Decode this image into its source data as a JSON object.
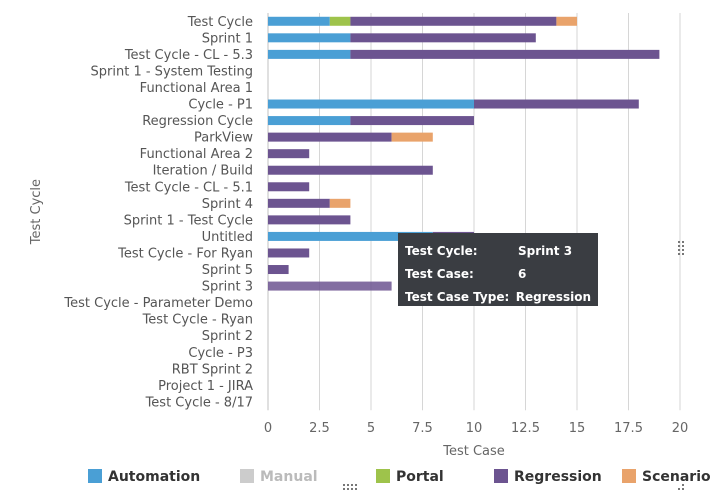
{
  "chart_data": {
    "type": "bar",
    "orientation": "horizontal",
    "stacked": true,
    "xlabel": "Test Case",
    "ylabel": "Test Cycle",
    "xlim": [
      0,
      20
    ],
    "x_ticks": [
      "0",
      "2.5",
      "5",
      "7.5",
      "10",
      "12.5",
      "15",
      "17.5",
      "20"
    ],
    "x_tick_values": [
      0,
      2.5,
      5,
      7.5,
      10,
      12.5,
      15,
      17.5,
      20
    ],
    "grid": true,
    "legend_position": "bottom",
    "categories": [
      "Test Cycle",
      "Sprint 1",
      "Test Cycle - CL - 5.3",
      "Sprint 1 - System Testing",
      "Functional Area 1",
      "Cycle - P1",
      "Regression Cycle",
      "ParkView",
      "Functional Area 2",
      "Iteration / Build",
      "Test Cycle - CL - 5.1",
      "Sprint 4",
      "Sprint 1 - Test Cycle",
      "Untitled",
      "Test Cycle - For Ryan",
      "Sprint 5",
      "Sprint 3",
      "Test Cycle - Parameter Demo",
      "Test Cycle - Ryan",
      "Sprint 2",
      "Cycle - P3",
      "RBT Sprint 2",
      "Project 1 - JIRA",
      "Test Cycle - 8/17"
    ],
    "series": [
      {
        "name": "Automation",
        "color": "#4a9fd5",
        "values": [
          3,
          4,
          4,
          0,
          0,
          10,
          4,
          0,
          0,
          0,
          0,
          0,
          0,
          8,
          0,
          0,
          0,
          0,
          0,
          0,
          0,
          0,
          0,
          0
        ]
      },
      {
        "name": "Manual",
        "color": "#d0d3d8",
        "values": [
          0,
          0,
          0,
          0,
          0,
          0,
          0,
          0,
          0,
          0,
          0,
          0,
          0,
          0,
          0,
          0,
          0,
          0,
          0,
          0,
          0,
          0,
          0,
          0
        ]
      },
      {
        "name": "Portal",
        "color": "#9ec34b",
        "values": [
          1,
          0,
          0,
          0,
          0,
          0,
          0,
          0,
          0,
          0,
          0,
          0,
          0,
          0,
          0,
          0,
          0,
          0,
          0,
          0,
          0,
          0,
          0,
          0
        ]
      },
      {
        "name": "Regression",
        "color": "#6c5490",
        "values": [
          10,
          9,
          15,
          0,
          0,
          8,
          6,
          6,
          2,
          8,
          2,
          3,
          4,
          2,
          2,
          1,
          6,
          0,
          0,
          0,
          0,
          0,
          0,
          0
        ]
      },
      {
        "name": "Scenario",
        "color": "#e9a36b",
        "values": [
          1,
          0,
          0,
          0,
          0,
          0,
          0,
          2,
          0,
          0,
          0,
          1,
          0,
          0,
          0,
          0,
          0,
          0,
          0,
          0,
          0,
          0,
          0,
          0
        ]
      }
    ],
    "legend_disabled": [
      "Manual"
    ],
    "highlighted": {
      "category": "Sprint 3",
      "series": "Regression"
    }
  },
  "tooltip": {
    "rows": [
      {
        "key": "Test Cycle:",
        "value": "Sprint 3"
      },
      {
        "key": "Test Case:",
        "value": "6"
      },
      {
        "key": "Test Case Type:",
        "value": "Regression"
      }
    ]
  }
}
